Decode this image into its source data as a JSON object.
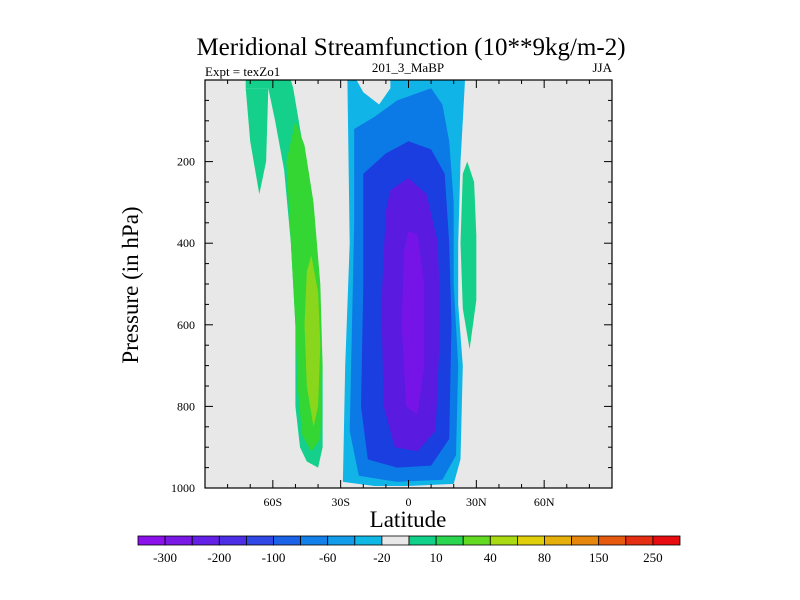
{
  "chart_data": {
    "type": "heatmap",
    "title": "Meridional Streamfunction (10**9kg/m-2)",
    "left_label": "Expt = texZo1",
    "center_label": "201_3_MaBP",
    "right_label": "JJA",
    "xlabel": "Latitude",
    "ylabel": "Pressure (in hPa)",
    "xlim": [
      -90,
      90
    ],
    "ylim": [
      0,
      1000
    ],
    "x_ticks": [
      {
        "value": -60,
        "label": "60S"
      },
      {
        "value": -30,
        "label": "30S"
      },
      {
        "value": 0,
        "label": "0"
      },
      {
        "value": 30,
        "label": "30N"
      },
      {
        "value": 60,
        "label": "60N"
      }
    ],
    "y_ticks": [
      {
        "value": 200,
        "label": "200"
      },
      {
        "value": 400,
        "label": "400"
      },
      {
        "value": 600,
        "label": "600"
      },
      {
        "value": 800,
        "label": "800"
      },
      {
        "value": 1000,
        "label": "1000"
      }
    ],
    "background_color": "#e8e8e8",
    "contour_regions": [
      {
        "name": "southern-cell-outer",
        "level": 10,
        "color": "#14d08a",
        "points": [
          [
            -72,
            20
          ],
          [
            -62,
            20
          ],
          [
            -59,
            100
          ],
          [
            -55,
            220
          ],
          [
            -52,
            400
          ],
          [
            -50,
            600
          ],
          [
            -50,
            800
          ],
          [
            -48,
            900
          ],
          [
            -45,
            935
          ],
          [
            -40,
            950
          ],
          [
            -38,
            900
          ],
          [
            -38,
            700
          ],
          [
            -40,
            500
          ],
          [
            -43,
            300
          ],
          [
            -47,
            150
          ],
          [
            -51,
            20
          ],
          [
            -52,
            0
          ],
          [
            -72,
            0
          ],
          [
            -72,
            20
          ]
        ]
      },
      {
        "name": "southern-cell-left-tail",
        "level": 10,
        "color": "#14d08a",
        "points": [
          [
            -72,
            20
          ],
          [
            -70,
            150
          ],
          [
            -66,
            280
          ],
          [
            -63,
            200
          ],
          [
            -62,
            20
          ],
          [
            -72,
            20
          ]
        ]
      },
      {
        "name": "southern-cell-40",
        "level": 40,
        "color": "#33d633",
        "points": [
          [
            -54,
            200
          ],
          [
            -52,
            400
          ],
          [
            -50,
            600
          ],
          [
            -49,
            750
          ],
          [
            -47,
            870
          ],
          [
            -43,
            910
          ],
          [
            -39,
            880
          ],
          [
            -38,
            700
          ],
          [
            -39,
            500
          ],
          [
            -42,
            300
          ],
          [
            -46,
            160
          ],
          [
            -50,
            100
          ],
          [
            -54,
            200
          ]
        ]
      },
      {
        "name": "southern-cell-80",
        "level": 80,
        "color": "#8ad61c",
        "points": [
          [
            -45,
            470
          ],
          [
            -46,
            600
          ],
          [
            -45,
            750
          ],
          [
            -42,
            850
          ],
          [
            -40,
            800
          ],
          [
            -39,
            650
          ],
          [
            -40,
            520
          ],
          [
            -43,
            430
          ],
          [
            -45,
            470
          ]
        ]
      },
      {
        "name": "northern-small-cell",
        "level": 10,
        "color": "#14d08a",
        "points": [
          [
            24,
            230
          ],
          [
            23,
            400
          ],
          [
            24,
            560
          ],
          [
            27,
            660
          ],
          [
            30,
            540
          ],
          [
            30,
            380
          ],
          [
            29,
            250
          ],
          [
            26,
            200
          ],
          [
            24,
            230
          ]
        ]
      },
      {
        "name": "central-cell-minus20",
        "level": -20,
        "color": "#10b4e6",
        "points": [
          [
            -27,
            0
          ],
          [
            -26,
            400
          ],
          [
            -28,
            700
          ],
          [
            -29,
            985
          ],
          [
            -15,
            995
          ],
          [
            0,
            995
          ],
          [
            20,
            990
          ],
          [
            23,
            930
          ],
          [
            24,
            700
          ],
          [
            22,
            550
          ],
          [
            22,
            400
          ],
          [
            23,
            200
          ],
          [
            24,
            100
          ],
          [
            25,
            0
          ],
          [
            -8,
            0
          ],
          [
            -8,
            20
          ],
          [
            -13,
            60
          ],
          [
            -20,
            30
          ],
          [
            -23,
            0
          ],
          [
            -27,
            0
          ]
        ]
      },
      {
        "name": "central-cell-minus60",
        "level": -60,
        "color": "#0c7ae6",
        "points": [
          [
            -24,
            120
          ],
          [
            -24,
            350
          ],
          [
            -25,
            600
          ],
          [
            -26,
            860
          ],
          [
            -22,
            970
          ],
          [
            -5,
            985
          ],
          [
            15,
            980
          ],
          [
            21,
            920
          ],
          [
            22,
            700
          ],
          [
            20,
            500
          ],
          [
            20,
            300
          ],
          [
            18,
            150
          ],
          [
            15,
            60
          ],
          [
            10,
            20
          ],
          [
            -5,
            50
          ],
          [
            -15,
            90
          ],
          [
            -24,
            120
          ]
        ]
      },
      {
        "name": "central-cell-minus100",
        "level": -100,
        "color": "#1a3ee0",
        "points": [
          [
            -20,
            230
          ],
          [
            -20,
            500
          ],
          [
            -21,
            800
          ],
          [
            -18,
            930
          ],
          [
            -5,
            950
          ],
          [
            10,
            945
          ],
          [
            18,
            880
          ],
          [
            19,
            600
          ],
          [
            18,
            400
          ],
          [
            16,
            230
          ],
          [
            10,
            170
          ],
          [
            0,
            150
          ],
          [
            -10,
            180
          ],
          [
            -20,
            230
          ]
        ]
      },
      {
        "name": "central-cell-minus200",
        "level": -200,
        "color": "#5a1ae0",
        "points": [
          [
            -10,
            320
          ],
          [
            -12,
            550
          ],
          [
            -11,
            800
          ],
          [
            -6,
            900
          ],
          [
            4,
            910
          ],
          [
            12,
            860
          ],
          [
            14,
            600
          ],
          [
            13,
            400
          ],
          [
            8,
            280
          ],
          [
            0,
            240
          ],
          [
            -8,
            270
          ],
          [
            -10,
            320
          ]
        ]
      },
      {
        "name": "central-cell-minus300",
        "level": -300,
        "color": "#7614e8",
        "points": [
          [
            -2,
            420
          ],
          [
            -3,
            600
          ],
          [
            -1,
            800
          ],
          [
            4,
            820
          ],
          [
            7,
            700
          ],
          [
            7,
            500
          ],
          [
            4,
            380
          ],
          [
            0,
            370
          ],
          [
            -2,
            420
          ]
        ]
      }
    ],
    "colorbar": {
      "colors": [
        "#8c10ec",
        "#7a18e6",
        "#6420e6",
        "#4c2ee6",
        "#3048e6",
        "#1a62e6",
        "#1480ea",
        "#129cea",
        "#10b8e6",
        "#e8e8e8",
        "#10d08a",
        "#2ad650",
        "#62da22",
        "#aada12",
        "#e0ce0a",
        "#e6b00a",
        "#e6860c",
        "#e65a10",
        "#e62e12",
        "#e60c10"
      ],
      "labels": [
        "-300",
        "-200",
        "-100",
        "-60",
        "-20",
        "10",
        "40",
        "80",
        "150",
        "250"
      ]
    }
  }
}
